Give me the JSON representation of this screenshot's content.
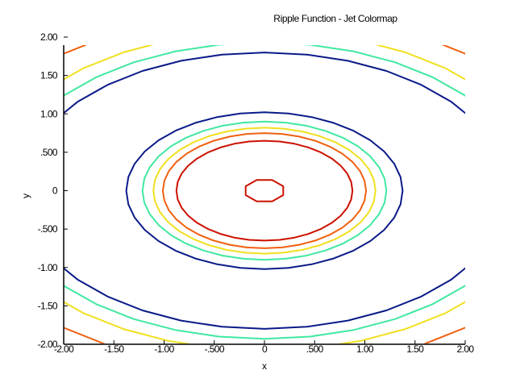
{
  "chart_data": {
    "type": "contour",
    "title": "Ripple Function - Jet Colormap",
    "xlabel": "x",
    "ylabel": "y",
    "xlim": [
      -2.0,
      2.0
    ],
    "ylim": [
      -2.0,
      2.0
    ],
    "x_ticks": [
      -2.0,
      -1.5,
      -1.0,
      -0.5,
      0,
      0.5,
      1.0,
      1.5,
      2.0
    ],
    "x_tick_labels": [
      "-2.00",
      "-1.50",
      "-1.00",
      "-.500",
      "0",
      ".500",
      "1.00",
      "1.50",
      "2.00"
    ],
    "y_ticks": [
      -2.0,
      -1.5,
      -1.0,
      -0.5,
      0,
      0.5,
      1.0,
      1.5,
      2.0
    ],
    "y_tick_labels": [
      "-2.00",
      "-1.50",
      "-1.00",
      "-.500",
      "0",
      ".500",
      "1.00",
      "1.50",
      "2.00"
    ],
    "grid": false,
    "levels": [
      {
        "color": "#cc1100",
        "ry": 0.15,
        "rx_over_ry": 1.35
      },
      {
        "color": "#cc1100",
        "ry": 0.65,
        "rx_over_ry": 1.35
      },
      {
        "color": "#f06010",
        "ry": 0.75,
        "rx_over_ry": 1.35
      },
      {
        "color": "#f0e020",
        "ry": 0.82,
        "rx_over_ry": 1.35
      },
      {
        "color": "#40e8a0",
        "ry": 0.9,
        "rx_over_ry": 1.35
      },
      {
        "color": "#0a1a88",
        "ry": 1.02,
        "rx_over_ry": 1.35
      },
      {
        "color": "#0a1a88",
        "ry": 1.8,
        "rx_over_ry": 1.35
      },
      {
        "color": "#40e8a0",
        "ry": 1.93,
        "rx_over_ry": 1.35
      },
      {
        "color": "#f0e020",
        "ry": 2.08,
        "rx_over_ry": 1.35
      },
      {
        "color": "#f06010",
        "ry": 2.32,
        "rx_over_ry": 1.35
      }
    ]
  }
}
